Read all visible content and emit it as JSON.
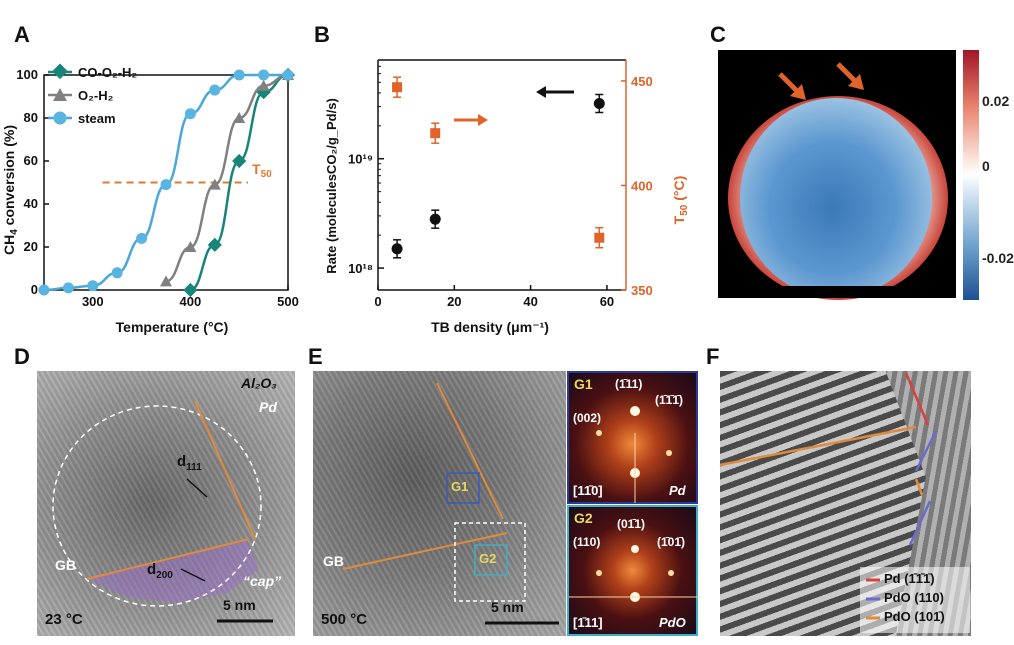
{
  "panels": {
    "A": {
      "label": "A",
      "ylabel_main": "CH",
      "ylabel_sub": "4",
      "ylabel_rest": " conversion (%)",
      "xlabel": "Temperature (°C)",
      "t50_main": "T",
      "t50_sub": "50",
      "legend": [
        "CO-O₂-H₂",
        "O₂-H₂",
        "steam"
      ]
    },
    "B": {
      "label": "B",
      "ylabel": "Rate (moleculesCO₂/g_Pd/s)",
      "ylabel_right_main": "T",
      "ylabel_right_sub": "50",
      "ylabel_right_rest": " (°C)",
      "xlabel": "TB density (μm⁻¹)"
    },
    "C": {
      "label": "C",
      "colorbar_ticks": [
        "0.02",
        "0",
        "-0.02"
      ]
    },
    "D": {
      "label": "D",
      "material": "Al₂O₃",
      "pd": "Pd",
      "d111": "d",
      "d111_sub": "111",
      "d200": "d",
      "d200_sub": "200",
      "gb": "GB",
      "cap": "“cap”",
      "scale": "5 nm",
      "temp": "23 °C"
    },
    "E": {
      "label": "E",
      "g1": "G1",
      "g2": "G2",
      "gb": "GB",
      "scale": "5 nm",
      "temp": "500 °C",
      "inset1": {
        "title": "G1",
        "spots": [
          "(1̄11)",
          "(1̄1̄1̄)",
          "(002)"
        ],
        "zone": "[11̄0]",
        "phase": "Pd"
      },
      "inset2": {
        "title": "G2",
        "spots": [
          "(01̄1)",
          "(110)",
          "(1̄01̄)"
        ],
        "zone": "[1̄11]",
        "phase": "PdO"
      }
    },
    "F": {
      "label": "F",
      "legend": [
        {
          "text": "Pd (1̄1̄1̄)",
          "color": "#d94040"
        },
        {
          "text": "PdO (110)",
          "color": "#6a6ad0"
        },
        {
          "text": "PdO (101̄)",
          "color": "#e08a3c"
        }
      ]
    }
  },
  "chart_data": [
    {
      "type": "line",
      "title": "",
      "xlabel": "Temperature (°C)",
      "ylabel": "CH4 conversion (%)",
      "xlim": [
        250,
        500
      ],
      "ylim": [
        0,
        100
      ],
      "xticks": [
        300,
        400,
        500
      ],
      "yticks": [
        0,
        20,
        40,
        60,
        80,
        100
      ],
      "series": [
        {
          "name": "CO-O₂-H₂",
          "color": "#17857a",
          "marker": "diamond",
          "x": [
            400,
            425,
            450,
            475,
            500
          ],
          "y": [
            0,
            21,
            60,
            92,
            100
          ]
        },
        {
          "name": "O₂-H₂",
          "color": "#808080",
          "marker": "triangle",
          "x": [
            375,
            400,
            425,
            450,
            475,
            500
          ],
          "y": [
            4,
            20,
            49,
            80,
            95,
            100
          ]
        },
        {
          "name": "steam",
          "color": "#4aa8d8",
          "marker": "circle",
          "x": [
            250,
            275,
            300,
            325,
            350,
            375,
            400,
            425,
            450,
            475,
            500
          ],
          "y": [
            0,
            1,
            2,
            8,
            24,
            49,
            82,
            93,
            100,
            100,
            100
          ]
        }
      ],
      "reference_line": {
        "y": 50,
        "label": "T50",
        "color": "#e07a30"
      }
    },
    {
      "type": "scatter",
      "title": "",
      "xlabel": "TB density (μm⁻¹)",
      "ylabel": "Rate (moleculesCO₂/g_Pd/s)",
      "ylabel_right": "T50 (°C)",
      "xlim": [
        0,
        65
      ],
      "ylim_log": [
        6.3e+17,
        8e+19
      ],
      "ylim_right": [
        350,
        460
      ],
      "xticks": [
        0,
        20,
        40,
        60
      ],
      "yticks_log_labels": [
        "10¹⁸",
        "10¹⁹"
      ],
      "yticks_right": [
        350,
        400,
        450
      ],
      "series": [
        {
          "name": "Rate",
          "axis": "left",
          "color": "#111111",
          "marker": "circle",
          "x": [
            5,
            15,
            58
          ],
          "y": [
            1.5e+18,
            2.8e+18,
            3.2e+19
          ]
        },
        {
          "name": "T50",
          "axis": "right",
          "color": "#e0632a",
          "marker": "square",
          "x": [
            5,
            15,
            58
          ],
          "y": [
            447,
            425,
            375
          ]
        }
      ]
    }
  ]
}
